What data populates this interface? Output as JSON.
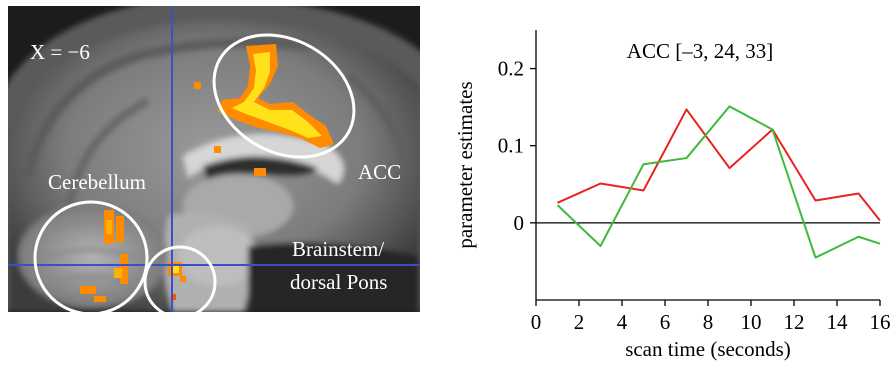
{
  "brain_image": {
    "slice_label": "X = −6",
    "region_labels": {
      "cerebellum": "Cerebellum",
      "acc": "ACC",
      "brainstem_line1": "Brainstem/",
      "brainstem_line2": "dorsal Pons"
    },
    "colors": {
      "activation_hot": "#ffe21a",
      "activation_warm": "#ff8c00",
      "crosshair": "#3b50c8",
      "circle": "#ffffff"
    }
  },
  "chart_data": {
    "type": "line",
    "title": "ACC [–3, 24, 33]",
    "xlabel": "scan time (seconds)",
    "ylabel": "parameter estimates",
    "xlim": [
      0,
      16
    ],
    "ylim": [
      -0.1,
      0.25
    ],
    "x_ticks": [
      "0",
      "2",
      "4",
      "6",
      "8",
      "10",
      "12",
      "14",
      "16"
    ],
    "y_ticks": [
      "0",
      "0.1",
      "0.2"
    ],
    "x": [
      1,
      3,
      5,
      7,
      9,
      11,
      13,
      15,
      16
    ],
    "series": [
      {
        "color": "#e8231f",
        "values": [
          0.026,
          0.051,
          0.042,
          0.147,
          0.071,
          0.121,
          0.029,
          0.038,
          0.003
        ]
      },
      {
        "color": "#3dba3a",
        "values": [
          0.023,
          -0.03,
          0.076,
          0.084,
          0.151,
          0.121,
          -0.045,
          -0.018,
          -0.027
        ]
      }
    ],
    "zero_line": true,
    "grid": false
  }
}
